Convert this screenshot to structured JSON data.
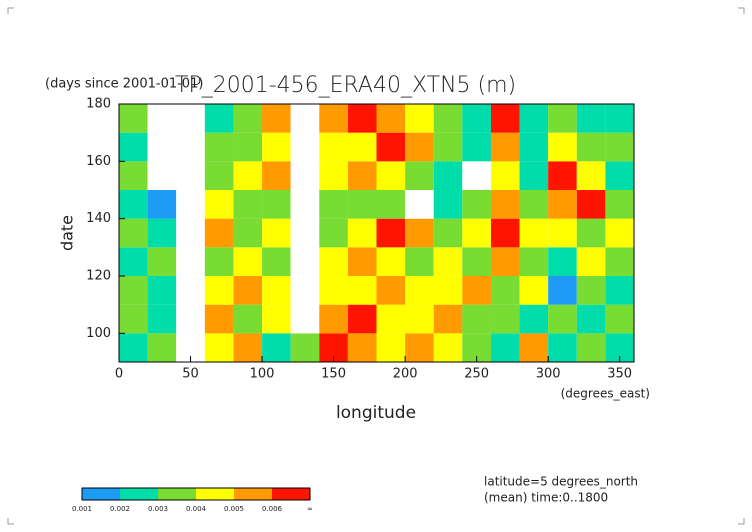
{
  "chart_data": {
    "type": "contour",
    "title": "TP_2001-456_ERA40_XTN5 (m)",
    "y_units": "(days since 2001-01-01)",
    "x_label": "longitude",
    "x_units": "(degrees_east)",
    "y_label": "date",
    "notes": [
      "latitude=5 degrees_north",
      "(mean) time:0..1800"
    ],
    "xlim": [
      0,
      360
    ],
    "xticks": [
      0,
      50,
      100,
      150,
      200,
      250,
      300,
      350
    ],
    "ylim": [
      90,
      180
    ],
    "yticks": [
      100,
      120,
      140,
      160,
      180
    ],
    "x": [
      10,
      30,
      50,
      70,
      90,
      110,
      130,
      150,
      170,
      190,
      210,
      230,
      250,
      270,
      290,
      310,
      330,
      350
    ],
    "y": [
      95,
      105,
      115,
      125,
      135,
      145,
      155,
      165,
      175
    ],
    "z": [
      [
        0.002,
        0.003,
        0.0005,
        0.004,
        0.005,
        0.002,
        0.003,
        0.006,
        0.005,
        0.004,
        0.005,
        0.004,
        0.003,
        0.002,
        0.005,
        0.002,
        0.003,
        0.002
      ],
      [
        0.003,
        0.002,
        0.0005,
        0.005,
        0.003,
        0.004,
        0.0008,
        0.005,
        0.006,
        0.004,
        0.004,
        0.005,
        0.003,
        0.003,
        0.002,
        0.003,
        0.002,
        0.003
      ],
      [
        0.003,
        0.002,
        0.0005,
        0.004,
        0.005,
        0.004,
        0.0008,
        0.004,
        0.004,
        0.005,
        0.004,
        0.004,
        0.005,
        0.003,
        0.004,
        0.001,
        0.003,
        0.002
      ],
      [
        0.002,
        0.003,
        0.0005,
        0.003,
        0.004,
        0.003,
        0.0008,
        0.004,
        0.005,
        0.004,
        0.003,
        0.004,
        0.003,
        0.005,
        0.003,
        0.002,
        0.004,
        0.003
      ],
      [
        0.003,
        0.002,
        0.0005,
        0.005,
        0.003,
        0.004,
        0.0008,
        0.003,
        0.004,
        0.006,
        0.005,
        0.003,
        0.004,
        0.006,
        0.004,
        0.004,
        0.003,
        0.004
      ],
      [
        0.002,
        0.001,
        0.0005,
        0.004,
        0.003,
        0.003,
        0.0008,
        0.003,
        0.003,
        0.003,
        0.0008,
        0.002,
        0.003,
        0.005,
        0.003,
        0.005,
        0.006,
        0.003
      ],
      [
        0.003,
        0.0008,
        0.0005,
        0.003,
        0.004,
        0.005,
        0.0008,
        0.004,
        0.005,
        0.004,
        0.003,
        0.002,
        0.0008,
        0.004,
        0.002,
        0.006,
        0.004,
        0.002
      ],
      [
        0.002,
        0.0008,
        0.0005,
        0.003,
        0.003,
        0.004,
        0.0008,
        0.004,
        0.004,
        0.006,
        0.005,
        0.003,
        0.002,
        0.005,
        0.002,
        0.004,
        0.003,
        0.003
      ],
      [
        0.003,
        0.0008,
        0.0005,
        0.002,
        0.003,
        0.005,
        0.0008,
        0.005,
        0.006,
        0.005,
        0.004,
        0.003,
        0.002,
        0.006,
        0.002,
        0.003,
        0.002,
        0.002
      ]
    ],
    "levels": [
      0.001,
      0.002,
      0.003,
      0.004,
      0.005,
      0.006
    ],
    "top_label": "∞",
    "colors": [
      "#1e9bf5",
      "#00dcaa",
      "#78dc32",
      "#ffff00",
      "#ff9a00",
      "#ff1400"
    ]
  }
}
